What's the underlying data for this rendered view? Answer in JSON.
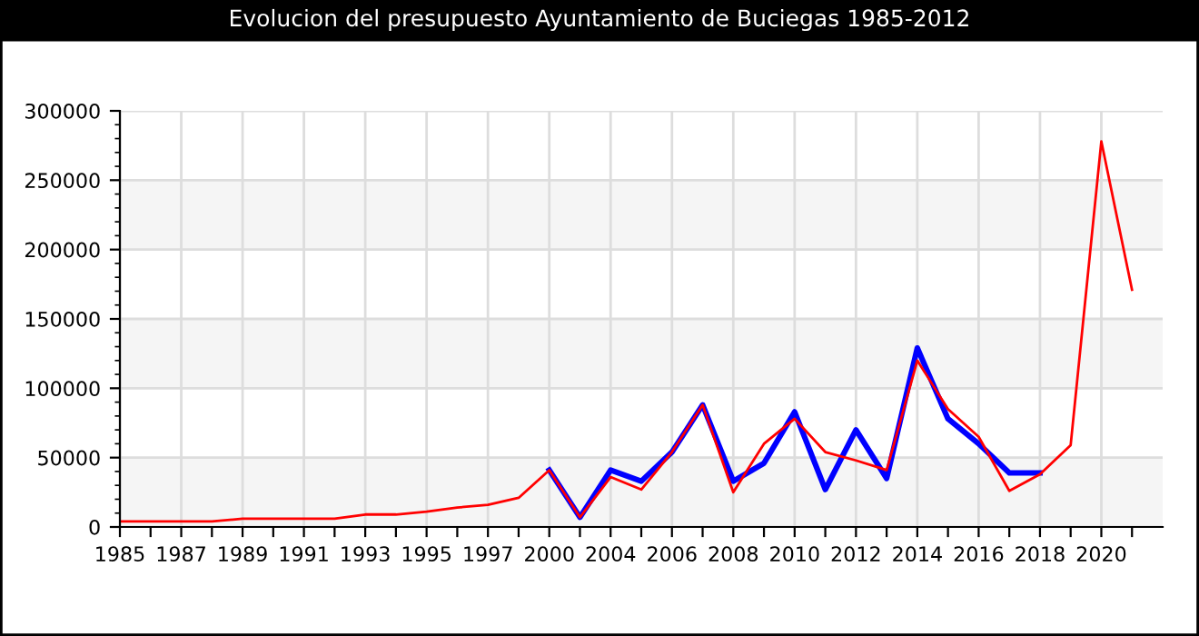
{
  "chart_data": {
    "type": "line",
    "title": "Evolucion del presupuesto Ayuntamiento de Buciegas 1985-2012",
    "categories": [
      "1985",
      null,
      "1987",
      null,
      "1989",
      null,
      "1991",
      null,
      "1993",
      null,
      "1995",
      null,
      "1997",
      null,
      "2000",
      null,
      "2004",
      null,
      "2006",
      null,
      "2008",
      null,
      "2010",
      null,
      "2012",
      null,
      "2014",
      null,
      "2016",
      null,
      "2018",
      null,
      "2020",
      null
    ],
    "series": [
      {
        "color": "#0000ff",
        "values": [
          null,
          null,
          null,
          null,
          null,
          null,
          null,
          null,
          null,
          null,
          null,
          null,
          null,
          null,
          41000,
          7000,
          41000,
          33000,
          54000,
          88000,
          33000,
          46000,
          83000,
          27000,
          70000,
          35000,
          129000,
          78000,
          60000,
          39000,
          39000,
          null,
          null,
          null
        ]
      },
      {
        "color": "#ff0000",
        "values": [
          4000,
          4000,
          4000,
          4000,
          6000,
          6000,
          6000,
          6000,
          9000,
          9000,
          11000,
          14000,
          16000,
          21000,
          41000,
          7000,
          36000,
          27000,
          54000,
          88000,
          25000,
          60000,
          78000,
          54000,
          48000,
          41000,
          120000,
          85000,
          65000,
          26000,
          38000,
          59000,
          278000,
          171000
        ]
      }
    ],
    "ylim": [
      0,
      300000
    ],
    "yticks": [
      0,
      50000,
      100000,
      150000,
      200000,
      250000,
      300000
    ],
    "grid": true
  }
}
